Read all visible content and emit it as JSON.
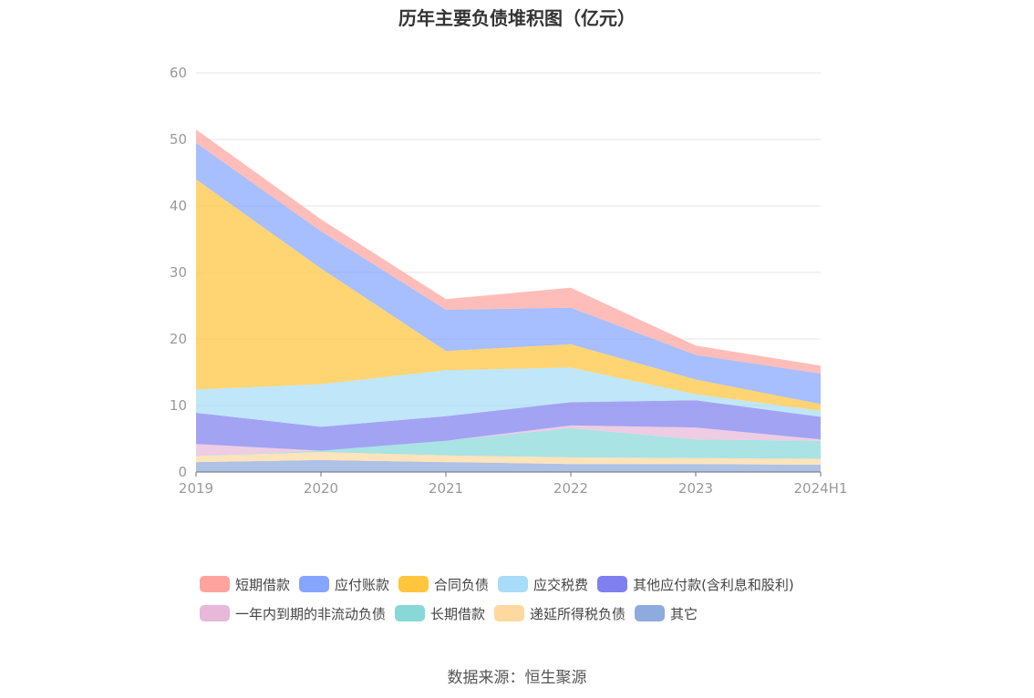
{
  "chart_data": {
    "type": "area",
    "stacked": true,
    "title": "历年主要负债堆积图（亿元）",
    "xlabel": "",
    "ylabel": "",
    "ylim": [
      0,
      60
    ],
    "yticks": [
      0,
      10,
      20,
      30,
      40,
      50,
      60
    ],
    "grid": true,
    "legend_position": "bottom",
    "categories": [
      "2019",
      "2020",
      "2021",
      "2022",
      "2023",
      "2024H1"
    ],
    "series": [
      {
        "name": "其它",
        "color": "#8FAADC",
        "values": [
          1.5,
          1.8,
          1.5,
          1.2,
          1.2,
          1.1
        ]
      },
      {
        "name": "递延所得税负债",
        "color": "#FFD8A0",
        "values": [
          0.9,
          1.2,
          1.0,
          1.0,
          0.9,
          0.9
        ]
      },
      {
        "name": "长期借款",
        "color": "#88D8D8",
        "values": [
          0.0,
          0.2,
          2.2,
          4.4,
          2.8,
          2.7
        ]
      },
      {
        "name": "一年内到期的非流动负债",
        "color": "#E8B8D8",
        "values": [
          1.8,
          0.0,
          0.0,
          0.4,
          1.8,
          0.2
        ]
      },
      {
        "name": "其他应付款(含利息和股利)",
        "color": "#7F7FF0",
        "values": [
          4.7,
          3.6,
          3.7,
          3.5,
          4.1,
          3.4
        ]
      },
      {
        "name": "应交税费",
        "color": "#A8DCF8",
        "values": [
          3.5,
          6.4,
          6.9,
          5.2,
          0.9,
          0.9
        ]
      },
      {
        "name": "合同负债",
        "color": "#FFC53D",
        "values": [
          31.6,
          17.4,
          2.9,
          3.5,
          2.2,
          1.0
        ]
      },
      {
        "name": "应付账款",
        "color": "#85A5FF",
        "values": [
          5.5,
          5.6,
          6.2,
          5.5,
          3.7,
          4.6
        ]
      },
      {
        "name": "短期借款",
        "color": "#FFA39E",
        "values": [
          2.0,
          1.8,
          1.6,
          3.0,
          1.4,
          1.2
        ]
      }
    ],
    "legend_order": [
      "短期借款",
      "应付账款",
      "合同负债",
      "应交税费",
      "其他应付款(含利息和股利)",
      "一年内到期的非流动负债",
      "长期借款",
      "递延所得税负债",
      "其它"
    ]
  },
  "legend": {
    "row1": [
      {
        "label": "短期借款",
        "color": "#FFA39E"
      },
      {
        "label": "应付账款",
        "color": "#85A5FF"
      },
      {
        "label": "合同负债",
        "color": "#FFC53D"
      },
      {
        "label": "应交税费",
        "color": "#A8DCF8"
      },
      {
        "label": "其他应付款(含利息和股利)",
        "color": "#7F7FF0"
      }
    ],
    "row2": [
      {
        "label": "一年内到期的非流动负债",
        "color": "#E8B8D8"
      },
      {
        "label": "长期借款",
        "color": "#88D8D8"
      },
      {
        "label": "递延所得税负债",
        "color": "#FFD8A0"
      },
      {
        "label": "其它",
        "color": "#8FAADC"
      }
    ]
  },
  "source_note": "数据来源：恒生聚源"
}
